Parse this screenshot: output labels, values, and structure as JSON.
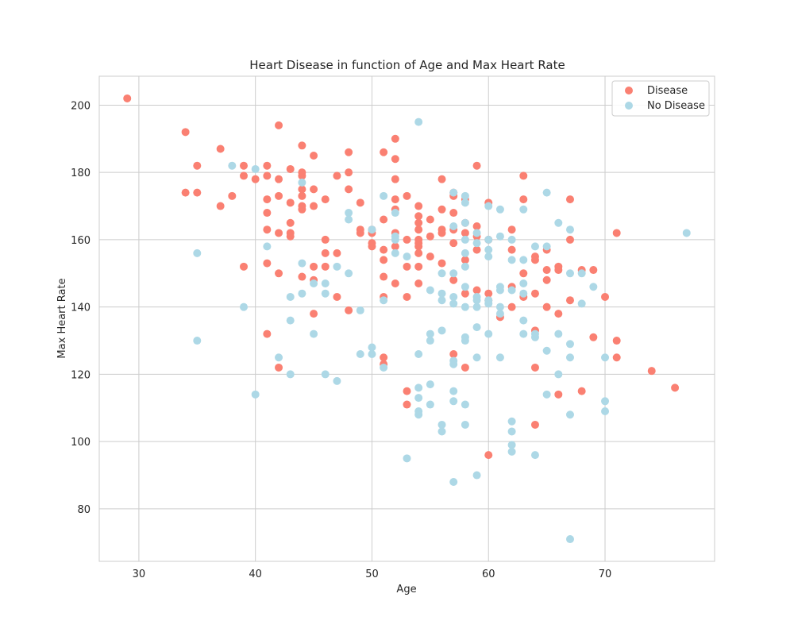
{
  "chart_data": {
    "type": "scatter",
    "title": "Heart Disease in function of Age and Max Heart Rate",
    "xlabel": "Age",
    "ylabel": "Max Heart Rate",
    "xlim": [
      26.6,
      79.4
    ],
    "ylim": [
      64.4,
      208.6
    ],
    "xticks": [
      30,
      40,
      50,
      60,
      70
    ],
    "yticks": [
      80,
      100,
      120,
      140,
      160,
      180,
      200
    ],
    "grid": true,
    "legend_position": "upper right",
    "series": [
      {
        "name": "Disease",
        "color": "#fa8072",
        "points": [
          [
            29,
            202
          ],
          [
            34,
            192
          ],
          [
            34,
            174
          ],
          [
            35,
            182
          ],
          [
            35,
            174
          ],
          [
            37,
            187
          ],
          [
            37,
            170
          ],
          [
            38,
            173
          ],
          [
            39,
            182
          ],
          [
            39,
            179
          ],
          [
            39,
            152
          ],
          [
            40,
            178
          ],
          [
            41,
            182
          ],
          [
            41,
            179
          ],
          [
            41,
            172
          ],
          [
            41,
            168
          ],
          [
            41,
            163
          ],
          [
            41,
            153
          ],
          [
            41,
            132
          ],
          [
            42,
            194
          ],
          [
            42,
            178
          ],
          [
            42,
            173
          ],
          [
            42,
            162
          ],
          [
            42,
            150
          ],
          [
            42,
            122
          ],
          [
            43,
            181
          ],
          [
            43,
            171
          ],
          [
            43,
            165
          ],
          [
            43,
            162
          ],
          [
            43,
            161
          ],
          [
            44,
            188
          ],
          [
            44,
            180
          ],
          [
            44,
            179
          ],
          [
            44,
            175
          ],
          [
            44,
            173
          ],
          [
            44,
            170
          ],
          [
            44,
            169
          ],
          [
            44,
            149
          ],
          [
            45,
            185
          ],
          [
            45,
            175
          ],
          [
            45,
            170
          ],
          [
            45,
            152
          ],
          [
            45,
            148
          ],
          [
            45,
            138
          ],
          [
            46,
            172
          ],
          [
            46,
            160
          ],
          [
            46,
            156
          ],
          [
            46,
            152
          ],
          [
            47,
            179
          ],
          [
            47,
            156
          ],
          [
            47,
            143
          ],
          [
            48,
            186
          ],
          [
            48,
            180
          ],
          [
            48,
            175
          ],
          [
            48,
            139
          ],
          [
            49,
            171
          ],
          [
            49,
            163
          ],
          [
            49,
            162
          ],
          [
            50,
            163
          ],
          [
            50,
            162
          ],
          [
            50,
            159
          ],
          [
            50,
            158
          ],
          [
            51,
            186
          ],
          [
            51,
            166
          ],
          [
            51,
            157
          ],
          [
            51,
            154
          ],
          [
            51,
            149
          ],
          [
            51,
            143
          ],
          [
            51,
            125
          ],
          [
            51,
            123
          ],
          [
            52,
            190
          ],
          [
            52,
            184
          ],
          [
            52,
            178
          ],
          [
            52,
            172
          ],
          [
            52,
            169
          ],
          [
            52,
            162
          ],
          [
            52,
            158
          ],
          [
            52,
            147
          ],
          [
            53,
            173
          ],
          [
            53,
            160
          ],
          [
            53,
            152
          ],
          [
            53,
            143
          ],
          [
            53,
            115
          ],
          [
            53,
            111
          ],
          [
            54,
            170
          ],
          [
            54,
            167
          ],
          [
            54,
            165
          ],
          [
            54,
            163
          ],
          [
            54,
            160
          ],
          [
            54,
            159
          ],
          [
            54,
            158
          ],
          [
            54,
            156
          ],
          [
            54,
            152
          ],
          [
            54,
            147
          ],
          [
            55,
            166
          ],
          [
            55,
            161
          ],
          [
            55,
            155
          ],
          [
            56,
            178
          ],
          [
            56,
            169
          ],
          [
            56,
            163
          ],
          [
            56,
            162
          ],
          [
            56,
            153
          ],
          [
            57,
            174
          ],
          [
            57,
            173
          ],
          [
            57,
            168
          ],
          [
            57,
            163
          ],
          [
            57,
            159
          ],
          [
            57,
            148
          ],
          [
            57,
            126
          ],
          [
            58,
            172
          ],
          [
            58,
            165
          ],
          [
            58,
            162
          ],
          [
            58,
            154
          ],
          [
            58,
            144
          ],
          [
            58,
            122
          ],
          [
            59,
            182
          ],
          [
            59,
            164
          ],
          [
            59,
            161
          ],
          [
            59,
            157
          ],
          [
            59,
            145
          ],
          [
            60,
            171
          ],
          [
            60,
            160
          ],
          [
            60,
            144
          ],
          [
            60,
            142
          ],
          [
            60,
            96
          ],
          [
            61,
            137
          ],
          [
            62,
            163
          ],
          [
            62,
            157
          ],
          [
            62,
            146
          ],
          [
            62,
            140
          ],
          [
            63,
            179
          ],
          [
            63,
            172
          ],
          [
            63,
            150
          ],
          [
            63,
            143
          ],
          [
            64,
            155
          ],
          [
            64,
            154
          ],
          [
            64,
            144
          ],
          [
            64,
            133
          ],
          [
            64,
            122
          ],
          [
            64,
            105
          ],
          [
            65,
            157
          ],
          [
            65,
            151
          ],
          [
            65,
            148
          ],
          [
            65,
            140
          ],
          [
            66,
            152
          ],
          [
            66,
            151
          ],
          [
            66,
            138
          ],
          [
            66,
            114
          ],
          [
            67,
            172
          ],
          [
            67,
            160
          ],
          [
            67,
            142
          ],
          [
            68,
            151
          ],
          [
            68,
            115
          ],
          [
            69,
            151
          ],
          [
            69,
            131
          ],
          [
            70,
            143
          ],
          [
            71,
            162
          ],
          [
            71,
            130
          ],
          [
            71,
            125
          ],
          [
            74,
            121
          ],
          [
            76,
            116
          ]
        ]
      },
      {
        "name": "No Disease",
        "color": "#add8e6",
        "points": [
          [
            35,
            156
          ],
          [
            35,
            130
          ],
          [
            38,
            182
          ],
          [
            39,
            140
          ],
          [
            40,
            181
          ],
          [
            40,
            114
          ],
          [
            41,
            158
          ],
          [
            42,
            125
          ],
          [
            43,
            143
          ],
          [
            43,
            136
          ],
          [
            43,
            120
          ],
          [
            44,
            177
          ],
          [
            44,
            153
          ],
          [
            44,
            144
          ],
          [
            45,
            147
          ],
          [
            45,
            132
          ],
          [
            46,
            147
          ],
          [
            46,
            144
          ],
          [
            46,
            120
          ],
          [
            47,
            152
          ],
          [
            47,
            118
          ],
          [
            48,
            168
          ],
          [
            48,
            166
          ],
          [
            48,
            150
          ],
          [
            49,
            139
          ],
          [
            49,
            126
          ],
          [
            50,
            163
          ],
          [
            50,
            128
          ],
          [
            50,
            126
          ],
          [
            51,
            173
          ],
          [
            51,
            142
          ],
          [
            51,
            122
          ],
          [
            52,
            168
          ],
          [
            52,
            161
          ],
          [
            52,
            160
          ],
          [
            52,
            156
          ],
          [
            53,
            155
          ],
          [
            53,
            95
          ],
          [
            54,
            195
          ],
          [
            54,
            126
          ],
          [
            54,
            116
          ],
          [
            54,
            113
          ],
          [
            54,
            109
          ],
          [
            54,
            108
          ],
          [
            55,
            145
          ],
          [
            55,
            132
          ],
          [
            55,
            130
          ],
          [
            55,
            117
          ],
          [
            55,
            111
          ],
          [
            56,
            150
          ],
          [
            56,
            144
          ],
          [
            56,
            142
          ],
          [
            56,
            133
          ],
          [
            56,
            105
          ],
          [
            56,
            103
          ],
          [
            57,
            174
          ],
          [
            57,
            164
          ],
          [
            57,
            150
          ],
          [
            57,
            143
          ],
          [
            57,
            141
          ],
          [
            57,
            124
          ],
          [
            57,
            123
          ],
          [
            57,
            115
          ],
          [
            57,
            112
          ],
          [
            57,
            88
          ],
          [
            58,
            173
          ],
          [
            58,
            171
          ],
          [
            58,
            165
          ],
          [
            58,
            160
          ],
          [
            58,
            156
          ],
          [
            58,
            152
          ],
          [
            58,
            146
          ],
          [
            58,
            140
          ],
          [
            58,
            131
          ],
          [
            58,
            130
          ],
          [
            58,
            111
          ],
          [
            58,
            105
          ],
          [
            59,
            162
          ],
          [
            59,
            159
          ],
          [
            59,
            143
          ],
          [
            59,
            142
          ],
          [
            59,
            140
          ],
          [
            59,
            134
          ],
          [
            59,
            125
          ],
          [
            59,
            90
          ],
          [
            60,
            170
          ],
          [
            60,
            160
          ],
          [
            60,
            157
          ],
          [
            60,
            155
          ],
          [
            60,
            142
          ],
          [
            60,
            141
          ],
          [
            60,
            132
          ],
          [
            61,
            169
          ],
          [
            61,
            161
          ],
          [
            61,
            146
          ],
          [
            61,
            145
          ],
          [
            61,
            140
          ],
          [
            61,
            138
          ],
          [
            61,
            125
          ],
          [
            62,
            160
          ],
          [
            62,
            154
          ],
          [
            62,
            145
          ],
          [
            62,
            106
          ],
          [
            62,
            103
          ],
          [
            62,
            99
          ],
          [
            62,
            97
          ],
          [
            63,
            169
          ],
          [
            63,
            154
          ],
          [
            63,
            147
          ],
          [
            63,
            144
          ],
          [
            63,
            136
          ],
          [
            63,
            132
          ],
          [
            64,
            158
          ],
          [
            64,
            132
          ],
          [
            64,
            131
          ],
          [
            64,
            96
          ],
          [
            65,
            174
          ],
          [
            65,
            158
          ],
          [
            65,
            127
          ],
          [
            65,
            114
          ],
          [
            66,
            165
          ],
          [
            66,
            132
          ],
          [
            66,
            120
          ],
          [
            67,
            163
          ],
          [
            67,
            150
          ],
          [
            67,
            129
          ],
          [
            67,
            125
          ],
          [
            67,
            108
          ],
          [
            67,
            71
          ],
          [
            68,
            150
          ],
          [
            68,
            141
          ],
          [
            69,
            146
          ],
          [
            70,
            125
          ],
          [
            70,
            112
          ],
          [
            70,
            109
          ],
          [
            77,
            162
          ]
        ]
      }
    ]
  }
}
